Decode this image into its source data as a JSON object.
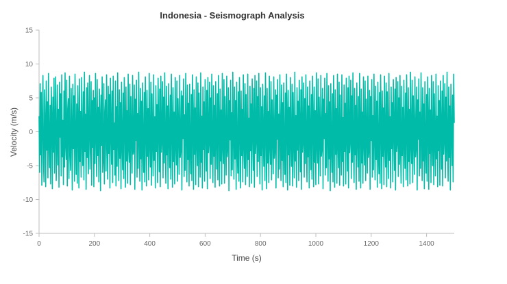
{
  "chart_data": {
    "type": "line",
    "title": "Indonesia - Seismograph Analysis",
    "xlabel": "Time (s)",
    "ylabel": "Velocity (m/s)",
    "xlim": [
      0,
      1500
    ],
    "ylim": [
      -15,
      15
    ],
    "x_ticks": [
      "0",
      "200",
      "400",
      "600",
      "800",
      "1000",
      "1200",
      "1400"
    ],
    "x_tick_values": [
      0,
      200,
      400,
      600,
      800,
      1000,
      1200,
      1400
    ],
    "y_ticks": [
      "15",
      "10",
      "5",
      "0",
      "-5",
      "-10",
      "-15"
    ],
    "y_tick_values": [
      15,
      10,
      5,
      0,
      -5,
      -10,
      -15
    ],
    "grid": false,
    "legend": "none",
    "series": [
      {
        "color": "#00bba8",
        "x_start": 0,
        "x_step": 2,
        "values": [
          2.3,
          -6.0,
          7.1,
          -3.4,
          5.8,
          -7.9,
          1.2,
          8.3,
          -4.6,
          -7.4,
          6.2,
          0.9,
          -8.1,
          7.5,
          -2.7,
          4.4,
          -6.8,
          8.6,
          -1.5,
          -5.3,
          3.9,
          -7.7,
          6.6,
          2.1,
          -8.4,
          5.1,
          -3.0,
          7.9,
          -6.1,
          0.4,
          8.1,
          -7.2,
          -2.2,
          6.9,
          -4.9,
          3.3,
          -8.2,
          7.3,
          -0.8,
          5.6,
          -6.5,
          8.4,
          -3.7,
          1.7,
          -7.8,
          6.0,
          -5.2,
          8.7,
          -1.9,
          -4.1,
          7.6,
          -8.0,
          2.8,
          4.9,
          -6.9,
          8.2,
          -3.1,
          -5.7,
          6.4,
          0.2,
          -8.6,
          7.0,
          -2.5,
          5.3,
          -7.3,
          8.5,
          -0.6,
          -6.3,
          4.1,
          -7.6,
          6.8,
          1.5,
          -8.3,
          7.8,
          -4.4,
          3.0,
          -6.7,
          8.0,
          -1.1,
          -5.0,
          5.9,
          -7.1,
          8.8,
          -2.9,
          2.6,
          -8.5,
          6.5,
          -3.8,
          7.2,
          -6.2,
          0.7,
          8.3,
          -5.5,
          -1.8,
          7.4,
          -7.9,
          4.6,
          -2.3,
          6.1,
          -8.1,
          5.0,
          -4.7,
          8.6,
          -0.3,
          -6.6,
          7.7,
          -3.5,
          3.6,
          -7.4,
          6.3,
          1.9,
          -8.7,
          5.4,
          -2.0,
          8.1,
          -6.0,
          -4.2,
          7.1,
          -7.7,
          2.4,
          4.7,
          -5.8,
          8.4,
          -1.4,
          -7.0,
          6.7,
          -3.2,
          5.5,
          -8.3,
          7.9,
          0.5,
          -4.8,
          6.0,
          -7.5,
          8.2,
          -2.6,
          1.3,
          -6.4,
          7.5,
          -8.0,
          3.7,
          -5.1,
          8.7,
          -0.9,
          -7.2,
          6.2,
          -3.9,
          4.3,
          -8.4,
          7.3,
          -1.6,
          -5.6,
          5.7,
          -6.9,
          8.0,
          2.0,
          -8.2,
          6.6,
          -4.3,
          3.1,
          -7.6,
          8.5,
          -2.1,
          -4.5,
          7.0,
          -7.8,
          5.2,
          0.1,
          -6.1,
          8.3,
          -3.3,
          -2.8,
          6.9,
          -8.5,
          4.8,
          -1.3,
          7.6,
          -6.7,
          2.7,
          -5.4,
          8.8,
          -0.4,
          -7.3,
          6.4,
          -4.0,
          4.5,
          -8.6,
          7.2,
          -2.4,
          -6.0,
          5.8,
          -7.4,
          8.1,
          1.6,
          -8.0,
          6.1,
          -3.6,
          3.4,
          -7.1,
          8.6,
          -1.7,
          -5.2,
          7.3,
          -7.9,
          5.6,
          -0.7,
          -6.5,
          8.4,
          -4.2,
          2.2,
          -8.3,
          6.8,
          -2.9,
          4.0,
          -7.5,
          7.9,
          0.8,
          -5.9,
          6.3,
          -8.1,
          8.2,
          -3.0,
          -1.2,
          7.4,
          -6.8,
          5.1,
          -4.6,
          8.7,
          -2.2,
          -7.6,
          6.7,
          -3.4,
          3.8,
          -8.4,
          7.1,
          -0.5,
          -5.3,
          5.4,
          -7.0,
          8.5,
          1.1,
          -8.2,
          6.5,
          -4.4,
          2.9,
          -7.7,
          8.0,
          -1.8,
          -4.9,
          7.5,
          -7.3,
          4.9,
          0.3,
          -6.3,
          8.3,
          -3.8,
          -2.5,
          6.0,
          -8.6,
          5.3,
          -1.0,
          7.8,
          -6.6,
          2.5,
          -5.7,
          8.6,
          -0.2,
          -7.4,
          6.9,
          -4.1,
          4.2,
          -8.0,
          7.0,
          -2.7,
          -6.2,
          5.5,
          -7.2,
          8.4,
          1.8,
          -8.5,
          6.2,
          -3.3,
          3.5,
          -7.8,
          8.1,
          -1.5,
          -5.0,
          7.2,
          -8.1,
          5.7,
          -0.6,
          -6.7,
          8.7,
          -4.5,
          2.3,
          -8.3,
          6.6,
          -2.6,
          4.4,
          -7.3,
          7.7,
          0.6,
          -5.8,
          6.1,
          -8.4,
          8.0,
          -3.1,
          -1.4,
          7.3,
          -6.9,
          5.0,
          -4.8,
          8.5,
          -2.0,
          -7.5,
          6.8,
          -3.6,
          3.9,
          -8.2,
          7.4,
          -0.8,
          -5.5,
          5.6,
          -7.1,
          8.3,
          1.3,
          -8.0,
          6.3,
          -4.3,
          3.2,
          -7.7,
          8.6,
          -1.9,
          -4.7,
          7.7,
          -7.6,
          5.2,
          0.0,
          -6.4,
          8.2,
          -3.7,
          -2.3,
          6.5,
          -8.7,
          4.6,
          -1.2,
          7.6,
          -6.5,
          2.8,
          -5.6,
          8.8,
          -0.5,
          -7.0,
          6.6,
          -4.0,
          4.6,
          -8.5,
          7.3,
          -2.5,
          -6.1,
          5.9,
          -7.3,
          8.0,
          1.7,
          -8.3,
          6.0,
          -3.5,
          3.3,
          -7.4,
          8.4,
          -1.6,
          -5.4,
          7.1,
          -7.8,
          5.5,
          -0.9,
          -6.6,
          8.5,
          -4.1,
          2.0,
          -8.1,
          6.7,
          -2.8,
          4.1,
          -7.6,
          7.8,
          0.9,
          -5.7,
          6.4,
          -8.2,
          8.3,
          -3.2,
          -1.1,
          7.5,
          -6.6,
          5.2,
          -4.4,
          8.6,
          -2.1,
          -7.7,
          6.5,
          -3.5,
          3.7,
          -8.6,
          7.0,
          -0.4,
          -5.1,
          5.3,
          -7.2,
          8.7,
          1.0,
          -8.4,
          6.4,
          -4.6,
          3.0,
          -7.5,
          8.2,
          -1.7,
          -4.8,
          7.4,
          -7.1,
          4.7,
          0.2,
          -6.2,
          8.1,
          -3.9,
          -2.6,
          6.2,
          -8.3,
          5.4,
          -1.1,
          7.7,
          -6.8,
          2.6,
          -5.5,
          8.4,
          -0.3,
          -7.2,
          6.9,
          -4.2,
          4.3,
          -8.1,
          7.2,
          -2.8,
          -6.3,
          5.7,
          -7.5,
          8.5,
          1.9,
          -8.6,
          6.1,
          -3.4,
          3.6,
          -7.9,
          8.0,
          -1.4,
          -5.1,
          7.0,
          -8.0,
          5.8,
          -0.7,
          -6.8,
          8.8,
          -4.3,
          2.4,
          -8.2,
          6.5,
          -2.7,
          4.5,
          -7.2,
          7.6,
          0.7,
          -5.9,
          6.2,
          -8.5,
          8.1,
          -3.0,
          -1.3,
          7.2,
          -6.7,
          4.9,
          -4.7,
          8.4,
          -2.2,
          -7.4,
          6.6,
          -3.7,
          3.8,
          -8.3,
          7.5,
          -0.6,
          -5.6,
          5.5,
          -7.0,
          8.2,
          1.4,
          -8.1,
          6.6,
          -4.5,
          3.1,
          -7.8,
          8.7,
          -1.8,
          -4.6,
          7.8,
          -7.7,
          5.1,
          0.1,
          -6.5,
          8.3,
          -3.6,
          -2.4,
          6.4,
          -8.4,
          4.8,
          -1.0,
          7.9,
          -6.4,
          2.7,
          -5.3,
          8.6,
          -0.1,
          -7.3,
          6.8,
          -4.0,
          4.4,
          -8.7,
          7.1,
          -2.3,
          -6.0,
          5.6,
          -7.4,
          8.3,
          1.5,
          -8.2,
          6.2,
          -3.3,
          3.4,
          -7.6,
          8.5,
          -1.6,
          -5.3,
          7.3,
          -7.9,
          5.4,
          -0.8,
          -6.4,
          8.4,
          -4.4,
          2.1,
          -8.0,
          6.9,
          -2.9,
          4.2,
          -7.7,
          7.9,
          0.4,
          -5.8,
          6.5,
          -8.3,
          8.2,
          -3.1,
          -1.2,
          7.6,
          -6.9,
          5.3,
          -4.5,
          8.7,
          -2.0,
          -7.5,
          6.4,
          -3.4,
          3.9,
          -8.5,
          7.2,
          -0.7,
          -5.2,
          5.2,
          -7.3,
          8.6,
          1.2,
          -8.3,
          6.3,
          -4.6,
          2.9,
          -7.6,
          8.1,
          -1.5,
          -4.9,
          7.5,
          -7.2,
          4.8,
          0.3,
          -6.1,
          8.2,
          -3.8,
          -2.7,
          6.1,
          -8.5,
          5.2,
          -1.3,
          7.7,
          -6.7,
          2.4,
          -5.6,
          8.5,
          -0.4,
          -7.1,
          6.7,
          -4.1,
          4.5,
          -8.2,
          7.3,
          -2.6,
          -6.2,
          5.8,
          -7.6,
          8.4,
          1.7,
          -8.4,
          6.0,
          -3.6,
          3.5,
          -7.8,
          8.2,
          -1.3,
          -5.2,
          7.2,
          -8.1,
          5.9,
          -0.5,
          -6.9,
          8.6,
          -4.2,
          2.2,
          -8.3,
          6.6,
          -2.5,
          4.3,
          -7.4,
          7.7,
          0.8,
          -5.7,
          6.3,
          -8.6,
          8.0,
          -2.9,
          -1.5,
          7.4,
          -6.6,
          5.0,
          -4.8,
          8.3,
          -2.3,
          -7.6,
          6.7,
          -3.5,
          3.6,
          -8.1,
          7.6,
          -0.9,
          -5.4,
          5.7,
          -7.1,
          8.4,
          1.1,
          -8.0,
          6.5,
          -4.4,
          3.3,
          -7.7,
          8.8,
          -1.7,
          -4.7,
          7.6,
          -7.5,
          5.3,
          -0.2,
          -6.3,
          8.1,
          -3.7,
          -2.2,
          6.6,
          -8.6,
          4.7,
          -1.1,
          7.8,
          -6.5,
          2.9,
          -5.4,
          8.7,
          -0.6,
          -7.2,
          6.5,
          -4.3,
          4.1,
          -8.4,
          7.4,
          -2.4,
          -6.1,
          5.5,
          -7.3,
          8.1,
          1.6,
          -8.5,
          6.4,
          -3.2,
          3.2,
          -7.5,
          8.3,
          -1.8,
          -5.0,
          7.4,
          -7.8,
          5.6,
          -1.0,
          -6.5,
          8.5,
          -4.0,
          2.3,
          -8.1,
          6.8,
          -2.8,
          4.6,
          -7.9,
          7.5,
          0.5,
          -5.5,
          6.0,
          -8.0,
          8.3,
          -3.3,
          -1.0,
          7.1,
          -6.8,
          5.1,
          -4.3,
          8.8,
          -2.1,
          -7.3,
          6.6,
          -3.8,
          3.8,
          -8.6,
          7.0,
          -0.3,
          -5.0,
          5.4,
          -7.4,
          8.5,
          1.3,
          -8.2,
          6.7,
          -4.5,
          2.8,
          -7.4,
          8.3,
          -1.9,
          -4.5,
          7.3,
          -7.0,
          4.9,
          0.0,
          -6.0,
          8.0,
          -3.5,
          -2.9,
          6.3,
          -8.4,
          5.5,
          -1.2,
          7.5,
          -6.9,
          2.6,
          -5.8,
          8.4,
          -0.1,
          -7.5,
          6.9,
          -4.1,
          4.7,
          -8.3,
          7.1,
          -2.7,
          -6.4,
          5.9,
          -7.7,
          8.6,
          1.8,
          -8.7,
          6.1,
          -3.4,
          3.7,
          -7.9,
          8.4,
          -1.2,
          -5.1,
          7.0,
          -8.0,
          5.6,
          -0.6,
          -6.7,
          8.7,
          -4.4,
          2.5,
          -8.4,
          6.4,
          -2.6,
          4.4,
          -7.3,
          7.8,
          0.6,
          -5.6,
          6.4,
          -8.3,
          8.1,
          -3.0,
          -1.6,
          7.3,
          -6.5,
          4.9,
          -4.9,
          8.5,
          -2.4,
          -7.7,
          6.8,
          -3.6,
          3.5,
          -8.2,
          7.7,
          -0.8,
          -5.5,
          5.6,
          -7.0,
          8.3,
          1.2,
          -8.1,
          6.6,
          -4.7,
          3.2,
          -7.6,
          8.6,
          -1.6,
          -4.8,
          7.8,
          -7.6,
          5.0,
          -0.1,
          -6.2,
          8.2,
          -3.9,
          -2.3,
          6.5,
          -8.5,
          4.6,
          -1.4,
          7.7,
          -6.6,
          2.8,
          -5.2,
          8.8,
          -0.7,
          -7.1,
          6.6,
          -4.2,
          4.2,
          -8.5,
          7.3,
          -2.5,
          -6.3,
          5.7,
          -7.2,
          8.2,
          1.5,
          -8.4,
          6.3,
          -3.3,
          3.3,
          -7.7,
          8.4,
          -1.7,
          -5.3,
          7.2,
          -7.9,
          5.5,
          -0.9,
          -6.6,
          8.4,
          -4.1,
          2.2,
          -8.2,
          6.7,
          -2.7,
          4.3,
          -7.8,
          7.6,
          0.7,
          -5.9,
          6.1,
          -8.1,
          8.2,
          -3.2,
          -1.1,
          7.5,
          -6.7,
          5.2,
          -4.6,
          8.6,
          -2.2,
          -7.4,
          6.5,
          -3.7,
          3.9,
          -8.7,
          7.1,
          -0.5,
          -5.1,
          5.3,
          -7.5,
          8.6,
          1.1,
          -8.3,
          6.5,
          -4.5,
          3.0,
          -7.5,
          8.2,
          -1.8,
          -4.6,
          7.4,
          -7.1,
          4.8,
          0.2,
          -6.1,
          8.1,
          -3.6,
          -2.8,
          6.2,
          -8.3,
          5.3,
          -1.1,
          7.6,
          -6.8,
          2.5,
          -5.7,
          8.5,
          -0.2,
          -7.4,
          6.8,
          -4.0,
          4.6,
          -8.2,
          7.2,
          -2.6,
          -6.2,
          5.8,
          -7.5,
          8.5,
          1.7,
          -8.6,
          6.2,
          -3.5,
          3.6,
          -7.8,
          8.1,
          -1.4,
          -5.2,
          7.1,
          -8.1,
          5.7,
          -0.7,
          -6.8,
          8.6,
          -4.3,
          2.4,
          -8.3,
          6.5,
          -2.8,
          4.5,
          -7.3,
          7.7,
          0.5,
          -5.8,
          6.3,
          -8.4,
          8.0,
          -3.1,
          -1.4,
          7.3,
          -6.6,
          5.0,
          -4.7,
          8.4,
          -2.3,
          -7.5,
          6.7,
          -3.6,
          3.7,
          -8.2,
          7.5,
          -0.7,
          -5.4,
          5.5,
          -7.1,
          8.3,
          1.3,
          -8.1,
          6.6,
          -4.4,
          3.1,
          -7.7,
          8.7,
          -1.7,
          -4.7,
          7.7,
          -7.6,
          5.2,
          0.0,
          -6.4,
          8.3,
          -3.7,
          -2.4,
          6.4,
          -8.5,
          4.7,
          -1.2,
          7.8,
          -6.5,
          2.7,
          -5.4,
          8.6,
          -0.4,
          -7.2,
          6.7,
          -4.1,
          4.4,
          -8.4,
          7.2,
          -2.4,
          -6.1,
          5.6,
          -7.3,
          8.2,
          1.6,
          -8.3,
          6.2,
          -3.4,
          3.4,
          -7.6,
          8.4,
          -1.6,
          -5.2,
          7.3,
          -7.8,
          5.5,
          -0.8,
          -6.5,
          8.5,
          -4.2,
          2.2,
          -8.1,
          6.8,
          -2.9,
          4.3,
          -7.7,
          7.8,
          0.6,
          -5.7,
          6.4,
          -8.2,
          8.2,
          -3.1,
          -1.2,
          7.4,
          -6.8,
          5.1,
          -4.5,
          8.6,
          -2.1,
          -7.5,
          6.6,
          -3.5,
          3.8,
          -8.5,
          7.1,
          -0.6,
          -5.2,
          5.4,
          -7.2,
          8.5,
          1.2,
          -8.2,
          6.4,
          -4.5,
          3.0,
          -7.6,
          8.3,
          -1.7,
          -4.8,
          7.5,
          -7.2,
          4.9,
          0.2,
          -6.2,
          8.2,
          -3.8,
          -2.6,
          6.2,
          -8.4,
          5.3,
          -1.2,
          7.7,
          -6.7,
          2.6,
          -5.6,
          8.5,
          -0.3,
          -7.3,
          6.8,
          -4.1,
          4.5,
          -8.3,
          7.2,
          -2.6,
          -6.2,
          5.7,
          -7.4,
          8.4,
          1.6,
          -8.4,
          6.1,
          -3.5,
          3.5,
          -7.8,
          8.2,
          -1.4,
          -5.1,
          7.1,
          -8.0,
          5.7,
          -0.6,
          -6.7,
          8.6,
          -4.3,
          2.4,
          -8.2,
          6.6,
          -2.7,
          4.4,
          -7.4,
          7.7,
          0.6,
          -5.7,
          6.3,
          -8.3,
          8.1
        ]
      }
    ]
  }
}
